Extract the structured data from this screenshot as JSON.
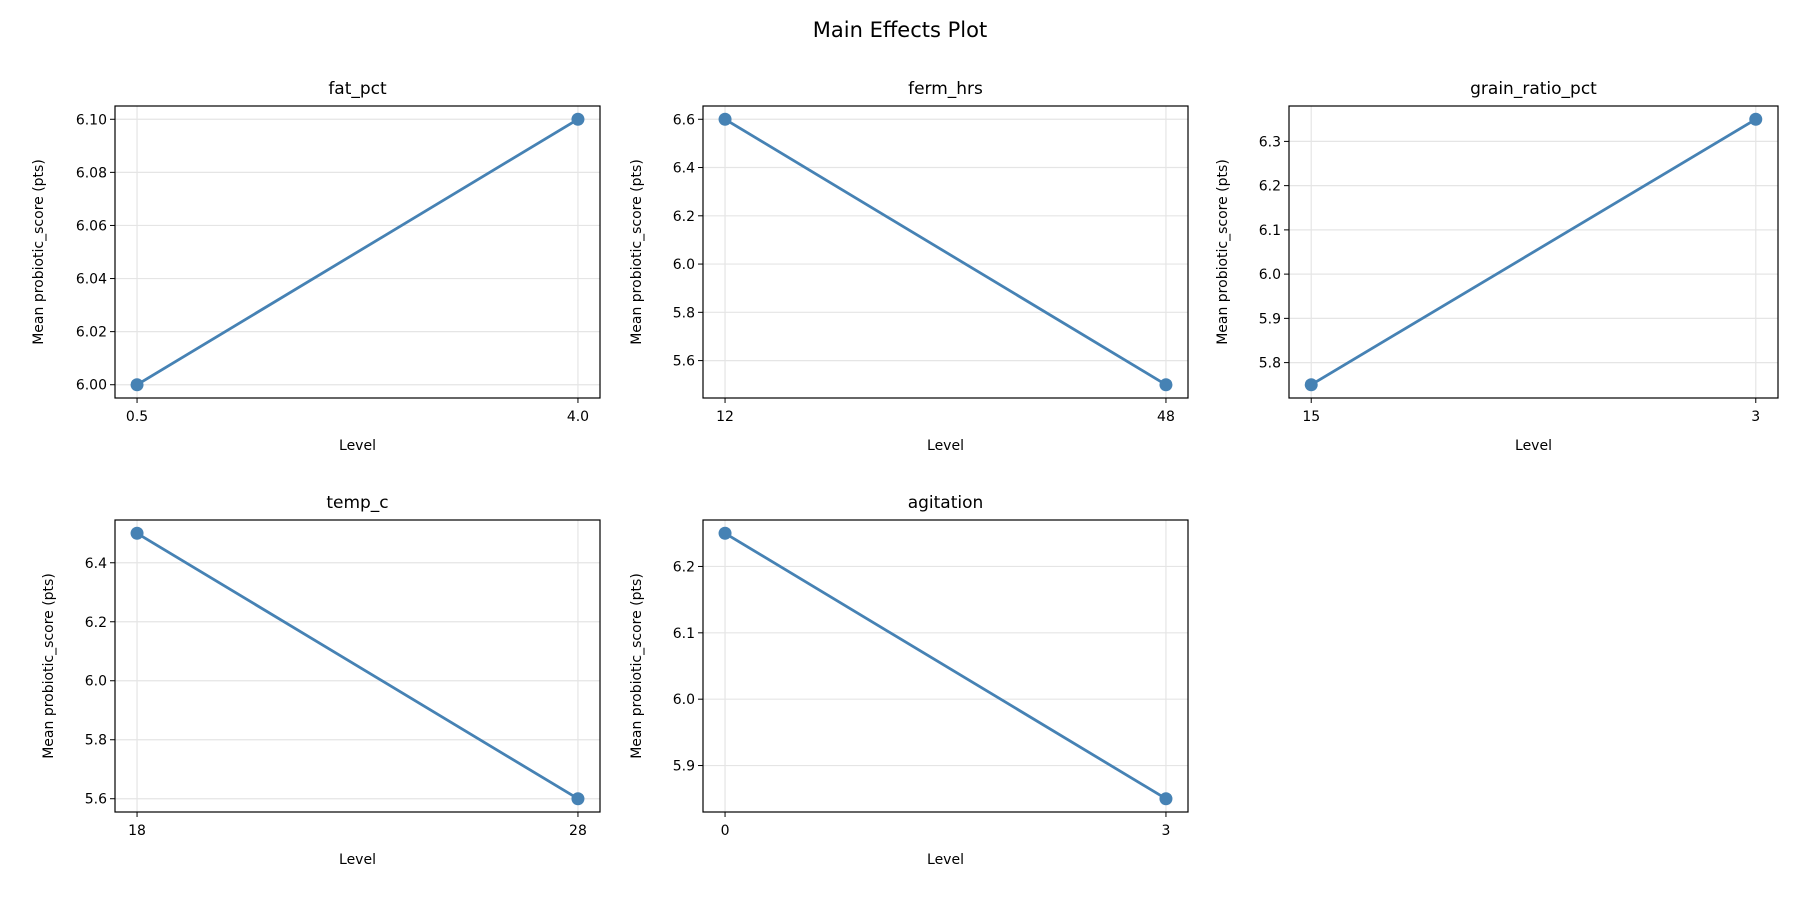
{
  "chart_data": {
    "type": "line",
    "title": "Main Effects Plot",
    "line_color": "#4682b4",
    "grid": true,
    "panels": [
      {
        "title": "fat_pct",
        "xlabel": "Level",
        "ylabel": "Mean probiotic_score (pts)",
        "categories": [
          "0.5",
          "4.0"
        ],
        "values": [
          6.0,
          6.1
        ],
        "ylim": [
          5.995,
          6.105
        ],
        "yticks": [
          6.0,
          6.02,
          6.04,
          6.06,
          6.08,
          6.1
        ],
        "ytick_labels": [
          "6.00",
          "6.02",
          "6.04",
          "6.06",
          "6.08",
          "6.10"
        ]
      },
      {
        "title": "ferm_hrs",
        "xlabel": "Level",
        "ylabel": "Mean probiotic_score (pts)",
        "categories": [
          "12",
          "48"
        ],
        "values": [
          6.6,
          5.5
        ],
        "ylim": [
          5.445,
          6.655
        ],
        "yticks": [
          5.6,
          5.8,
          6.0,
          6.2,
          6.4,
          6.6
        ],
        "ytick_labels": [
          "5.6",
          "5.8",
          "6.0",
          "6.2",
          "6.4",
          "6.6"
        ]
      },
      {
        "title": "grain_ratio_pct",
        "xlabel": "Level",
        "ylabel": "Mean probiotic_score (pts)",
        "categories": [
          "15",
          "3"
        ],
        "values": [
          5.75,
          6.35
        ],
        "ylim": [
          5.72,
          6.38
        ],
        "yticks": [
          5.8,
          5.9,
          6.0,
          6.1,
          6.2,
          6.3
        ],
        "ytick_labels": [
          "5.8",
          "5.9",
          "6.0",
          "6.1",
          "6.2",
          "6.3"
        ]
      },
      {
        "title": "temp_c",
        "xlabel": "Level",
        "ylabel": "Mean probiotic_score (pts)",
        "categories": [
          "18",
          "28"
        ],
        "values": [
          6.5,
          5.6
        ],
        "ylim": [
          5.555,
          6.545
        ],
        "yticks": [
          5.6,
          5.8,
          6.0,
          6.2,
          6.4
        ],
        "ytick_labels": [
          "5.6",
          "5.8",
          "6.0",
          "6.2",
          "6.4"
        ]
      },
      {
        "title": "agitation",
        "xlabel": "Level",
        "ylabel": "Mean probiotic_score (pts)",
        "categories": [
          "0",
          "3"
        ],
        "values": [
          6.25,
          5.85
        ],
        "ylim": [
          5.83,
          6.27
        ],
        "yticks": [
          5.9,
          6.0,
          6.1,
          6.2
        ],
        "ytick_labels": [
          "5.9",
          "6.0",
          "6.1",
          "6.2"
        ]
      }
    ]
  }
}
